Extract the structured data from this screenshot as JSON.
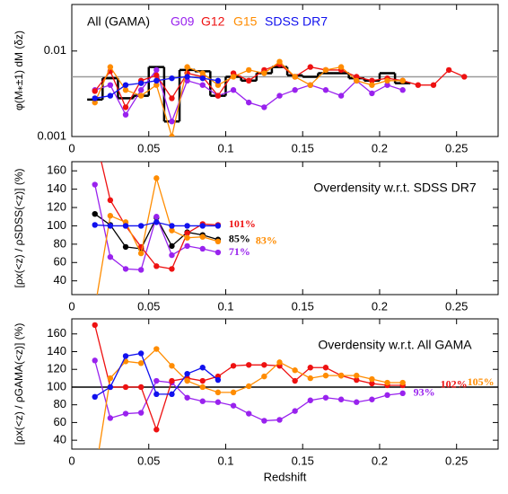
{
  "chart_data": [
    {
      "type": "line",
      "ylabel": "φ(M⁎±1) dM (δz)",
      "log_y": true,
      "x": [
        0.015,
        0.025,
        0.035,
        0.045,
        0.055,
        0.065,
        0.075,
        0.085,
        0.095,
        0.105,
        0.115,
        0.125,
        0.135,
        0.145,
        0.155,
        0.165,
        0.175,
        0.185,
        0.195,
        0.205,
        0.215,
        0.225,
        0.235,
        0.245,
        0.255
      ],
      "xlim": [
        0,
        0.277
      ],
      "xticks": [
        0,
        0.05,
        0.1,
        0.15,
        0.2,
        0.25
      ],
      "ylim": [
        0.001,
        0.035
      ],
      "yticks": [
        0.001,
        0.01
      ],
      "hline": 0.005,
      "hline_color": "#999999",
      "series": [
        {
          "name": "All (GAMA)",
          "color": "#000000",
          "style": "step",
          "values": [
            0.0027,
            0.0048,
            0.0028,
            0.003,
            0.0065,
            0.0015,
            0.006,
            0.0058,
            0.003,
            0.005,
            0.0045,
            0.0055,
            0.0065,
            0.0052,
            0.005,
            0.0055,
            0.0055,
            0.0048,
            0.0045,
            0.0055,
            0.0042,
            null,
            null,
            null,
            null
          ]
        },
        {
          "name": "G09",
          "color": "#9922ee",
          "values": [
            0.0035,
            0.004,
            0.0018,
            0.0035,
            0.006,
            0.0015,
            0.0045,
            0.004,
            0.003,
            0.0035,
            0.0025,
            0.0022,
            0.003,
            0.0035,
            0.004,
            0.0035,
            0.003,
            0.0045,
            0.0032,
            0.004,
            0.0035,
            null,
            null,
            null,
            null
          ]
        },
        {
          "name": "G12",
          "color": "#ee1111",
          "values": [
            0.0034,
            0.0058,
            0.0022,
            0.0045,
            0.0052,
            0.0028,
            0.0055,
            0.005,
            0.003,
            0.0055,
            0.0045,
            0.006,
            0.007,
            0.005,
            0.0065,
            0.006,
            0.006,
            0.005,
            0.0045,
            0.0048,
            0.0045,
            0.004,
            0.004,
            0.006,
            0.005
          ]
        },
        {
          "name": "G15",
          "color": "#ff8c00",
          "values": [
            0.0025,
            0.0065,
            0.0035,
            0.003,
            0.004,
            0.001,
            0.0065,
            0.0055,
            0.004,
            0.005,
            0.006,
            0.0055,
            0.0075,
            0.005,
            0.004,
            0.006,
            0.0065,
            0.0045,
            0.004,
            0.0045,
            0.0045,
            null,
            null,
            null,
            null
          ]
        },
        {
          "name": "SDSS DR7",
          "color": "#1111ee",
          "values": [
            0.0028,
            0.003,
            0.004,
            0.0042,
            0.0045,
            0.0048,
            0.005,
            0.0048,
            0.0045,
            null,
            null,
            null,
            null,
            null,
            null,
            null,
            null,
            null,
            null,
            null,
            null,
            null,
            null,
            null,
            null
          ]
        }
      ]
    },
    {
      "type": "line",
      "title": "Overdensity w.r.t. SDSS DR7",
      "ylabel": "[ρx(<z) / ρSDSS(<z)] (%)",
      "x": [
        0.015,
        0.025,
        0.035,
        0.045,
        0.055,
        0.065,
        0.075,
        0.085,
        0.095
      ],
      "xlim": [
        0,
        0.277
      ],
      "xticks": [
        0,
        0.05,
        0.1,
        0.15,
        0.2,
        0.25
      ],
      "ylim": [
        25,
        170
      ],
      "yticks": [
        40,
        60,
        80,
        100,
        120,
        140,
        160
      ],
      "series": [
        {
          "color": "#000000",
          "values": [
            113,
            101,
            77,
            75,
            109,
            78,
            93,
            90,
            85
          ],
          "end_label": "85%"
        },
        {
          "color": "#9922ee",
          "values": [
            145,
            66,
            53,
            52,
            110,
            68,
            78,
            75,
            71
          ],
          "end_label": "71%"
        },
        {
          "color": "#ee1111",
          "values": [
            200,
            128,
            100,
            77,
            56,
            53,
            92,
            102,
            101
          ],
          "end_label": "101%"
        },
        {
          "color": "#ff8c00",
          "values": [
            10,
            111,
            104,
            70,
            152,
            95,
            87,
            88,
            83
          ],
          "end_label": "83%"
        },
        {
          "color": "#1111ee",
          "values": [
            101,
            100,
            100,
            100,
            104,
            100,
            100,
            100,
            100
          ]
        }
      ]
    },
    {
      "type": "line",
      "title": "Overdensity w.r.t. All GAMA",
      "ylabel": "[ρx(<z) / ρGAMA(<z)] (%)",
      "xlabel": "Redshift",
      "x": [
        0.015,
        0.025,
        0.035,
        0.045,
        0.055,
        0.065,
        0.075,
        0.085,
        0.095,
        0.105,
        0.115,
        0.125,
        0.135,
        0.145,
        0.155,
        0.165,
        0.175,
        0.185,
        0.195,
        0.205,
        0.215
      ],
      "xlim": [
        0,
        0.277
      ],
      "xticks": [
        0,
        0.05,
        0.1,
        0.15,
        0.2,
        0.25
      ],
      "ylim": [
        30,
        177
      ],
      "yticks": [
        40,
        60,
        80,
        100,
        120,
        140,
        160
      ],
      "hline": 100,
      "hline_color": "#000000",
      "series": [
        {
          "color": "#9922ee",
          "values": [
            130,
            65,
            70,
            71,
            107,
            105,
            88,
            84,
            83,
            79,
            70,
            62,
            63,
            73,
            85,
            88,
            86,
            83,
            86,
            91,
            93
          ],
          "end_label": "93%"
        },
        {
          "color": "#ee1111",
          "values": [
            170,
            100,
            100,
            100,
            52,
            107,
            110,
            107,
            112,
            124,
            125,
            125,
            124,
            107,
            122,
            122,
            113,
            108,
            104,
            102,
            102
          ],
          "end_label": "102%"
        },
        {
          "color": "#ff8c00",
          "values": [
            0,
            110,
            129,
            127,
            143,
            124,
            107,
            100,
            94,
            94,
            101,
            112,
            128,
            119,
            110,
            113,
            113,
            113,
            109,
            105,
            105
          ],
          "end_label": "105%"
        },
        {
          "color": "#1111ee",
          "values": [
            89,
            100,
            135,
            138,
            92,
            92,
            115,
            122,
            108,
            null,
            null,
            null,
            null,
            null,
            null,
            null,
            null,
            null,
            null,
            null,
            null
          ]
        }
      ]
    }
  ]
}
